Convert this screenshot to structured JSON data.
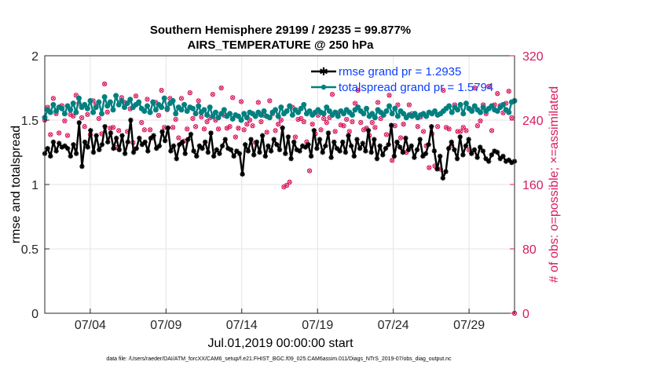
{
  "chart_data": {
    "type": "line",
    "title": "Southern Hemisphere 29199 / 29235 = 99.877%",
    "subtitle": "AIRS_TEMPERATURE @ 250 hPa",
    "xlabel": "Jul.01,2019 00:00:00 start",
    "ylabel": "rmse and totalspread",
    "y2label": "# of obs: o=possible; ×=assimilated",
    "x_ticks": [
      {
        "label": "07/04",
        "value": 4
      },
      {
        "label": "07/09",
        "value": 9
      },
      {
        "label": "07/14",
        "value": 14
      },
      {
        "label": "07/19",
        "value": 19
      },
      {
        "label": "07/24",
        "value": 24
      },
      {
        "label": "07/29",
        "value": 29
      }
    ],
    "xlim": [
      1,
      32
    ],
    "ylim": [
      0,
      2
    ],
    "y_ticks": [
      "0",
      "0.5",
      "1",
      "1.5",
      "2"
    ],
    "y2lim": [
      0,
      320
    ],
    "y2_ticks": [
      "0",
      "80",
      "160",
      "240",
      "320"
    ],
    "legend_position": "top-right",
    "series": [
      {
        "name": "rmse grand pr = 1.2935",
        "color": "#000000",
        "marker": "star",
        "values": [
          1.24,
          1.28,
          1.22,
          1.33,
          1.26,
          1.32,
          1.29,
          1.3,
          1.28,
          1.22,
          1.31,
          1.24,
          1.48,
          1.14,
          1.33,
          1.29,
          1.42,
          1.25,
          1.38,
          1.27,
          1.31,
          1.45,
          1.33,
          1.4,
          1.28,
          1.36,
          1.27,
          1.38,
          1.24,
          1.33,
          1.5,
          1.25,
          1.28,
          1.36,
          1.31,
          1.33,
          1.26,
          1.36,
          1.38,
          1.28,
          1.3,
          1.41,
          1.34,
          1.44,
          1.26,
          1.3,
          1.2,
          1.31,
          1.33,
          1.24,
          1.35,
          1.39,
          1.26,
          1.22,
          1.3,
          1.28,
          1.33,
          1.25,
          1.4,
          1.22,
          1.27,
          1.24,
          1.3,
          1.35,
          1.28,
          1.27,
          1.22,
          1.26,
          1.24,
          1.08,
          1.31,
          1.26,
          1.35,
          1.23,
          1.33,
          1.25,
          1.38,
          1.22,
          1.3,
          1.26,
          1.35,
          1.31,
          1.27,
          1.44,
          1.24,
          1.37,
          1.2,
          1.33,
          1.27,
          1.26,
          1.3,
          1.29,
          1.31,
          1.22,
          1.42,
          1.28,
          1.35,
          1.25,
          1.3,
          1.4,
          1.21,
          1.33,
          1.28,
          1.26,
          1.33,
          1.25,
          1.38,
          1.3,
          1.22,
          1.35,
          1.28,
          1.32,
          1.26,
          1.42,
          1.25,
          1.35,
          1.2,
          1.3,
          1.23,
          1.28,
          1.31,
          1.46,
          1.22,
          1.33,
          1.29,
          1.25,
          1.36,
          1.27,
          1.3,
          1.21,
          1.27,
          1.35,
          1.22,
          1.24,
          1.31,
          1.45,
          1.26,
          1.12,
          1.22,
          1.05,
          1.1,
          1.28,
          1.33,
          1.27,
          1.2,
          1.37,
          1.23,
          1.3,
          1.35,
          1.24,
          1.27,
          1.21,
          1.29,
          1.26,
          1.2,
          1.18,
          1.23,
          1.26,
          1.25,
          1.2,
          1.22,
          1.18,
          1.19,
          1.17,
          1.18
        ]
      },
      {
        "name": "totalspread grand pr = 1.5794",
        "color": "#008080",
        "marker": "circle",
        "values": [
          1.52,
          1.58,
          1.56,
          1.62,
          1.57,
          1.6,
          1.59,
          1.55,
          1.61,
          1.58,
          1.63,
          1.56,
          1.67,
          1.6,
          1.62,
          1.59,
          1.65,
          1.56,
          1.6,
          1.64,
          1.55,
          1.68,
          1.61,
          1.64,
          1.58,
          1.69,
          1.62,
          1.65,
          1.6,
          1.63,
          1.66,
          1.6,
          1.62,
          1.64,
          1.59,
          1.57,
          1.61,
          1.56,
          1.64,
          1.58,
          1.62,
          1.6,
          1.67,
          1.59,
          1.63,
          1.65,
          1.55,
          1.6,
          1.58,
          1.62,
          1.57,
          1.6,
          1.59,
          1.55,
          1.61,
          1.56,
          1.58,
          1.54,
          1.6,
          1.53,
          1.56,
          1.52,
          1.55,
          1.58,
          1.53,
          1.55,
          1.51,
          1.54,
          1.53,
          1.5,
          1.55,
          1.52,
          1.56,
          1.55,
          1.53,
          1.56,
          1.54,
          1.57,
          1.53,
          1.52,
          1.56,
          1.58,
          1.53,
          1.6,
          1.55,
          1.57,
          1.61,
          1.54,
          1.58,
          1.56,
          1.59,
          1.62,
          1.55,
          1.57,
          1.54,
          1.56,
          1.58,
          1.56,
          1.55,
          1.6,
          1.57,
          1.54,
          1.56,
          1.53,
          1.57,
          1.55,
          1.58,
          1.56,
          1.54,
          1.58,
          1.6,
          1.57,
          1.55,
          1.59,
          1.53,
          1.55,
          1.52,
          1.58,
          1.56,
          1.54,
          1.57,
          1.61,
          1.55,
          1.59,
          1.53,
          1.57,
          1.55,
          1.52,
          1.54,
          1.53,
          1.55,
          1.52,
          1.54,
          1.55,
          1.53,
          1.56,
          1.55,
          1.57,
          1.54,
          1.55,
          1.57,
          1.59,
          1.61,
          1.56,
          1.6,
          1.58,
          1.62,
          1.55,
          1.63,
          1.59,
          1.57,
          1.61,
          1.58,
          1.56,
          1.6,
          1.57,
          1.59,
          1.61,
          1.58,
          1.57,
          1.6,
          1.62,
          1.58,
          1.56,
          1.64,
          1.65
        ]
      },
      {
        "name": "# of obs possible",
        "color": "#d81b60",
        "marker": "o",
        "axis": "right",
        "values": [
          240,
          256,
          222,
          267,
          248,
          224,
          258,
          239,
          221,
          247,
          245,
          271,
          261,
          243,
          232,
          247,
          222,
          264,
          259,
          242,
          223,
          285,
          250,
          230,
          231,
          206,
          227,
          268,
          262,
          226,
          254,
          212,
          270,
          261,
          237,
          228,
          266,
          228,
          218,
          262,
          246,
          277,
          231,
          253,
          267,
          231,
          241,
          218,
          267,
          214,
          229,
          274,
          242,
          232,
          264,
          244,
          229,
          238,
          243,
          272,
          240,
          229,
          280,
          246,
          230,
          232,
          268,
          219,
          230,
          263,
          228,
          235,
          240,
          233,
          212,
          262,
          238,
          246,
          225,
          264,
          248,
          227,
          235,
          240,
          157,
          159,
          163,
          256,
          219,
          241,
          242,
          238,
          213,
          177,
          235,
          223,
          246,
          228,
          242,
          237,
          243,
          272,
          226,
          249,
          234,
          233,
          241,
          226,
          238,
          261,
          277,
          237,
          228,
          230,
          221,
          237,
          231,
          262,
          242,
          247,
          222,
          271,
          190,
          233,
          259,
          218,
          235,
          200,
          259,
          248,
          247,
          232,
          244,
          226,
          208,
          181,
          223,
          183,
          232,
          179,
          277,
          231,
          229,
          209,
          259,
          226,
          226,
          231,
          227,
          203,
          253,
          280,
          233,
          239,
          259,
          248,
          282,
          227,
          259,
          273,
          258,
          249,
          261,
          276,
          243,
          0
        ]
      },
      {
        "name": "# of obs assimilated",
        "color": "#d81b60",
        "marker": "x",
        "axis": "right",
        "values": [
          240,
          256,
          222,
          267,
          248,
          224,
          258,
          239,
          221,
          247,
          245,
          271,
          261,
          243,
          232,
          247,
          222,
          264,
          259,
          242,
          223,
          285,
          250,
          230,
          231,
          206,
          227,
          268,
          262,
          226,
          254,
          212,
          270,
          261,
          237,
          228,
          266,
          228,
          218,
          262,
          246,
          277,
          231,
          253,
          267,
          231,
          241,
          218,
          267,
          214,
          229,
          274,
          242,
          232,
          264,
          244,
          229,
          238,
          243,
          272,
          240,
          229,
          280,
          246,
          230,
          232,
          268,
          219,
          230,
          263,
          228,
          235,
          240,
          233,
          212,
          262,
          238,
          246,
          225,
          264,
          248,
          227,
          235,
          240,
          157,
          159,
          163,
          256,
          219,
          241,
          242,
          238,
          213,
          177,
          235,
          223,
          246,
          228,
          242,
          237,
          243,
          272,
          226,
          249,
          234,
          233,
          241,
          226,
          238,
          261,
          277,
          237,
          228,
          230,
          221,
          237,
          231,
          262,
          242,
          247,
          222,
          271,
          190,
          233,
          259,
          218,
          235,
          200,
          259,
          248,
          247,
          232,
          244,
          226,
          208,
          181,
          223,
          183,
          232,
          179,
          277,
          231,
          229,
          209,
          259,
          226,
          226,
          231,
          227,
          203,
          253,
          280,
          233,
          239,
          259,
          248,
          282,
          227,
          259,
          273,
          258,
          249,
          261,
          276,
          243,
          0
        ]
      }
    ]
  },
  "footer": "data file: /Users/raeder/DAI/ATM_forcXX/CAM6_setup/f.e21.FHIST_BGC.f09_025.CAM6assim.011/Diags_NTrS_2019-07/obs_diag_output.nc"
}
